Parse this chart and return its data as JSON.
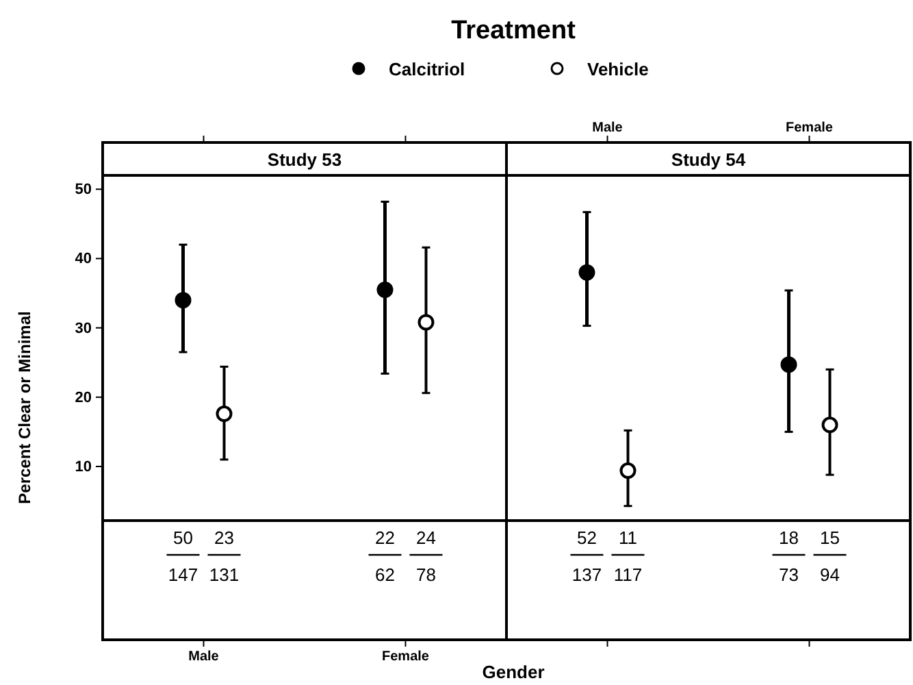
{
  "chart_data": [
    {
      "type": "scatter",
      "title": "Study 53",
      "legend_title": "Treatment",
      "legend": "top",
      "xlabel": "Gender",
      "ylabel": "Percent Clear or Minimal",
      "marker": "circle",
      "categories": [
        "Male",
        "Female"
      ],
      "ylim": [
        -15,
        52
      ],
      "yticks": [
        10,
        20,
        30,
        40,
        50
      ],
      "series": [
        {
          "name": "Calcitriol",
          "color": "#000000",
          "values": [
            34,
            35.5
          ],
          "errors": [
            [
              26.5,
              42
            ],
            [
              23.4,
              48.2
            ]
          ]
        },
        {
          "name": "Vehicle",
          "color": "#000000",
          "values": [
            17.6,
            30.8
          ],
          "errors": [
            [
              11,
              24.4
            ],
            [
              20.6,
              41.6
            ]
          ]
        }
      ],
      "annotations": [
        "50",
        "147",
        "23",
        "131",
        "22",
        "62",
        "24",
        "78"
      ]
    },
    {
      "type": "scatter",
      "title": "Study 54",
      "marker": "circle",
      "categories": [
        "Male",
        "Female"
      ],
      "ylim": [
        -15,
        52
      ],
      "yticks": [
        10,
        20,
        30,
        40,
        50
      ],
      "tick_labels": "x",
      "series": [
        {
          "name": "Calcitriol",
          "color": "#000000",
          "values": [
            38,
            24.7
          ],
          "errors": [
            [
              30.3,
              46.7
            ],
            [
              15,
              35.4
            ]
          ]
        },
        {
          "name": "Vehicle",
          "color": "#000000",
          "values": [
            9.4,
            16
          ],
          "errors": [
            [
              4.3,
              15.2
            ],
            [
              8.8,
              24
            ]
          ]
        }
      ],
      "annotations": [
        "52",
        "137",
        "11",
        "117",
        "18",
        "73",
        "15",
        "94"
      ]
    }
  ]
}
